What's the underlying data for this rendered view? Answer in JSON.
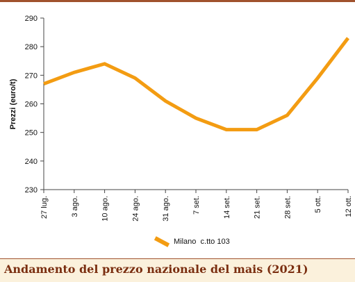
{
  "chart_data": {
    "type": "line",
    "ylabel": "Prezzi (euro/t)",
    "xlabel": "",
    "categories": [
      "27 lug.",
      "3 ago.",
      "10 ago.",
      "24 ago.",
      "31 ago.",
      "7 set.",
      "14 set.",
      "21 set.",
      "28 set.",
      "5 ott.",
      "12 ott."
    ],
    "series": [
      {
        "name": "Milano  c.tto 103",
        "values": [
          267,
          271,
          274,
          269,
          261,
          255,
          251,
          251,
          256,
          269,
          283
        ]
      }
    ],
    "ylim": [
      230,
      290
    ],
    "yticks": [
      230,
      240,
      250,
      260,
      270,
      280,
      290
    ],
    "grid": false,
    "legend": "bottom-center",
    "colors": {
      "line": "#f39c12",
      "axis": "#444444",
      "caption_bg": "#fbf1dc",
      "caption_text": "#7a2e10"
    }
  },
  "caption": {
    "title": "Andamento del prezzo nazionale del mais (2021)"
  }
}
